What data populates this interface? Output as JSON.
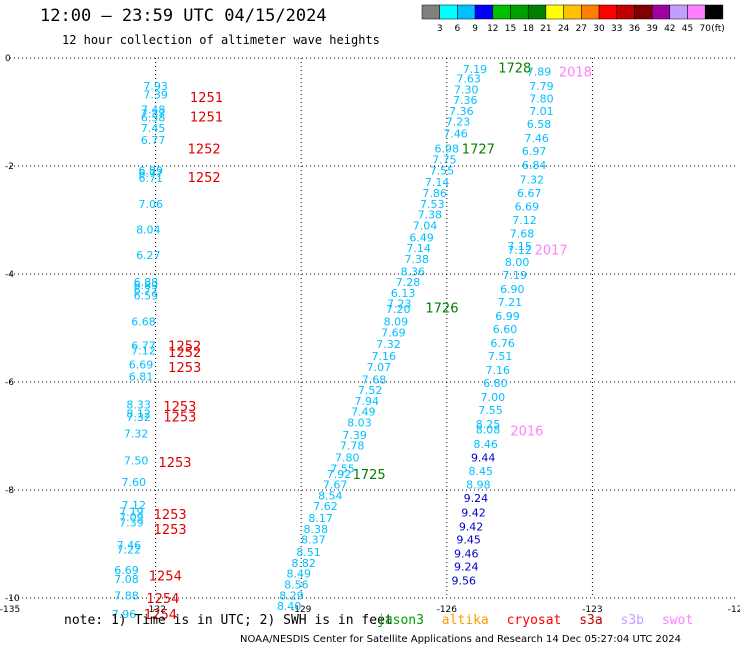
{
  "title": "12:00 – 23:59 UTC 04/15/2024",
  "subtitle": "12 hour collection of altimeter wave heights",
  "note": "note: 1) Time is in UTC; 2) SWH is in feet",
  "credit": "NOAA/NESDIS Center for Satellite Applications and Research   14 Dec 05:27:04 UTC 2024",
  "colorbar": {
    "unit": "(ft)",
    "labels": [
      "3",
      "6",
      "9",
      "12",
      "15",
      "18",
      "21",
      "24",
      "27",
      "30",
      "33",
      "36",
      "39",
      "42",
      "45",
      "70"
    ],
    "colors": [
      "#808080",
      "#00ffff",
      "#00c0ff",
      "#0000ff",
      "#00c000",
      "#00a000",
      "#008000",
      "#ffff00",
      "#ffc000",
      "#ff8000",
      "#ff0000",
      "#c00000",
      "#800000",
      "#a000a0",
      "#c0a0ff",
      "#ff80ff",
      "#000000"
    ]
  },
  "legend": [
    {
      "name": "jason3",
      "color": "#00a000"
    },
    {
      "name": "altika",
      "color": "#ff9900"
    },
    {
      "name": "cryosat",
      "color": "#ff0000"
    },
    {
      "name": "s3a",
      "color": "#c00000"
    },
    {
      "name": "s3b",
      "color": "#c0a0ff"
    },
    {
      "name": "swot",
      "color": "#ff80ff"
    }
  ],
  "chart_data": {
    "type": "scatter",
    "xlabel": "",
    "ylabel": "",
    "xlim": [
      -135,
      -120
    ],
    "ylim": [
      -10,
      0
    ],
    "x_ticks": [
      "-135",
      "-132",
      "-129",
      "-126",
      "-123",
      "-120"
    ],
    "y_ticks": [
      "0",
      "-2",
      "-4",
      "-6",
      "-8",
      "-10"
    ],
    "grid": true,
    "series": [
      {
        "satellite": "cryosat",
        "text_color": "#00bfff",
        "label_color": "#e00000",
        "points": [
          {
            "x": -132.0,
            "y": -0.52,
            "v": "7.93"
          },
          {
            "x": -132.0,
            "y": -0.68,
            "v": "7.39"
          },
          {
            "x": -132.05,
            "y": -0.95,
            "v": "7.48"
          },
          {
            "x": -132.05,
            "y": -1.03,
            "v": "7.37"
          },
          {
            "x": -132.05,
            "y": -1.1,
            "v": "6.58"
          },
          {
            "x": -132.05,
            "y": -1.3,
            "v": "7.45"
          },
          {
            "x": -132.05,
            "y": -1.52,
            "v": "6.77"
          },
          {
            "x": -132.1,
            "y": -2.08,
            "v": "6.89"
          },
          {
            "x": -132.1,
            "y": -2.13,
            "v": "6.77"
          },
          {
            "x": -132.1,
            "y": -2.22,
            "v": "6.71"
          },
          {
            "x": -132.1,
            "y": -2.7,
            "v": "7.06"
          },
          {
            "x": -132.15,
            "y": -3.18,
            "v": "8.04"
          },
          {
            "x": -132.15,
            "y": -3.65,
            "v": "6.27"
          },
          {
            "x": -132.2,
            "y": -4.15,
            "v": "6.88"
          },
          {
            "x": -132.2,
            "y": -4.2,
            "v": "6.89"
          },
          {
            "x": -132.2,
            "y": -4.3,
            "v": "6.77"
          },
          {
            "x": -132.2,
            "y": -4.4,
            "v": "6.59"
          },
          {
            "x": -132.25,
            "y": -4.88,
            "v": "6.68"
          },
          {
            "x": -132.25,
            "y": -5.32,
            "v": "6.77"
          },
          {
            "x": -132.25,
            "y": -5.42,
            "v": "7.12"
          },
          {
            "x": -132.3,
            "y": -5.68,
            "v": "6.69"
          },
          {
            "x": -132.3,
            "y": -5.9,
            "v": "6.81"
          },
          {
            "x": -132.35,
            "y": -6.42,
            "v": "8.33"
          },
          {
            "x": -132.35,
            "y": -6.58,
            "v": "8.12"
          },
          {
            "x": -132.35,
            "y": -6.65,
            "v": "7.32"
          },
          {
            "x": -132.4,
            "y": -6.95,
            "v": "7.32"
          },
          {
            "x": -132.4,
            "y": -7.45,
            "v": "7.50"
          },
          {
            "x": -132.45,
            "y": -7.85,
            "v": "7.60"
          },
          {
            "x": -132.45,
            "y": -8.28,
            "v": "7.12"
          },
          {
            "x": -132.5,
            "y": -8.4,
            "v": "7.19"
          },
          {
            "x": -132.5,
            "y": -8.5,
            "v": "7.09"
          },
          {
            "x": -132.5,
            "y": -8.6,
            "v": "7.39"
          },
          {
            "x": -132.55,
            "y": -9.02,
            "v": "7.46"
          },
          {
            "x": -132.55,
            "y": -9.1,
            "v": "7.22"
          },
          {
            "x": -132.6,
            "y": -9.48,
            "v": "6.69"
          },
          {
            "x": -132.6,
            "y": -9.65,
            "v": "7.08"
          },
          {
            "x": -132.6,
            "y": -9.95,
            "v": "7.88"
          },
          {
            "x": -132.65,
            "y": -10.3,
            "v": "7.96"
          }
        ],
        "labels": [
          {
            "x": -130.95,
            "y": -0.72,
            "t": "1251"
          },
          {
            "x": -130.95,
            "y": -1.08,
            "t": "1251"
          },
          {
            "x": -131.0,
            "y": -1.68,
            "t": "1252"
          },
          {
            "x": -131.0,
            "y": -2.2,
            "t": "1252"
          },
          {
            "x": -131.4,
            "y": -5.32,
            "t": "1252"
          },
          {
            "x": -131.4,
            "y": -5.44,
            "t": "1252"
          },
          {
            "x": -131.4,
            "y": -5.72,
            "t": "1253"
          },
          {
            "x": -131.5,
            "y": -6.44,
            "t": "1253"
          },
          {
            "x": -131.5,
            "y": -6.64,
            "t": "1253"
          },
          {
            "x": -131.6,
            "y": -7.48,
            "t": "1253"
          },
          {
            "x": -131.7,
            "y": -8.44,
            "t": "1253"
          },
          {
            "x": -131.7,
            "y": -8.72,
            "t": "1253"
          },
          {
            "x": -131.8,
            "y": -9.58,
            "t": "1254"
          },
          {
            "x": -131.85,
            "y": -10.0,
            "t": "1254"
          },
          {
            "x": -131.9,
            "y": -10.3,
            "t": "1254"
          }
        ]
      },
      {
        "satellite": "jason3",
        "text_color": "#00bfff",
        "label_color": "#008000",
        "points": [
          {
            "x": -125.42,
            "y": -0.2,
            "v": "7.19"
          },
          {
            "x": -125.55,
            "y": -0.38,
            "v": "7.63"
          },
          {
            "x": -125.6,
            "y": -0.58,
            "v": "7.30"
          },
          {
            "x": -125.62,
            "y": -0.78,
            "v": "7.36"
          },
          {
            "x": -125.7,
            "y": -0.98,
            "v": "7.36"
          },
          {
            "x": -125.77,
            "y": -1.18,
            "v": "7.23"
          },
          {
            "x": -125.82,
            "y": -1.4,
            "v": "7.46"
          },
          {
            "x": -126.0,
            "y": -1.68,
            "v": "6.98"
          },
          {
            "x": -126.05,
            "y": -1.88,
            "v": "7.75"
          },
          {
            "x": -126.1,
            "y": -2.08,
            "v": "7.55"
          },
          {
            "x": -126.2,
            "y": -2.3,
            "v": "7.14"
          },
          {
            "x": -126.25,
            "y": -2.5,
            "v": "7.86"
          },
          {
            "x": -126.3,
            "y": -2.7,
            "v": "7.53"
          },
          {
            "x": -126.35,
            "y": -2.9,
            "v": "7.38"
          },
          {
            "x": -126.45,
            "y": -3.1,
            "v": "7.04"
          },
          {
            "x": -126.52,
            "y": -3.32,
            "v": "6.49"
          },
          {
            "x": -126.58,
            "y": -3.52,
            "v": "7.14"
          },
          {
            "x": -126.62,
            "y": -3.72,
            "v": "7.38"
          },
          {
            "x": -126.7,
            "y": -3.95,
            "v": "8.36"
          },
          {
            "x": -126.8,
            "y": -4.15,
            "v": "7.28"
          },
          {
            "x": -126.9,
            "y": -4.35,
            "v": "6.13"
          },
          {
            "x": -126.98,
            "y": -4.55,
            "v": "7.23"
          },
          {
            "x": -127.0,
            "y": -4.65,
            "v": "7.20"
          },
          {
            "x": -127.05,
            "y": -4.88,
            "v": "8.09"
          },
          {
            "x": -127.1,
            "y": -5.08,
            "v": "7.69"
          },
          {
            "x": -127.2,
            "y": -5.3,
            "v": "7.32"
          },
          {
            "x": -127.3,
            "y": -5.52,
            "v": "7.16"
          },
          {
            "x": -127.4,
            "y": -5.72,
            "v": "7.07"
          },
          {
            "x": -127.5,
            "y": -5.95,
            "v": "7.68"
          },
          {
            "x": -127.58,
            "y": -6.15,
            "v": "7.52"
          },
          {
            "x": -127.65,
            "y": -6.35,
            "v": "7.94"
          },
          {
            "x": -127.72,
            "y": -6.55,
            "v": "7.49"
          },
          {
            "x": -127.8,
            "y": -6.75,
            "v": "8.03"
          },
          {
            "x": -127.9,
            "y": -6.98,
            "v": "7.39"
          },
          {
            "x": -127.95,
            "y": -7.18,
            "v": "7.78"
          },
          {
            "x": -128.05,
            "y": -7.4,
            "v": "7.80"
          },
          {
            "x": -128.15,
            "y": -7.6,
            "v": "7.55"
          },
          {
            "x": -128.22,
            "y": -7.7,
            "v": "7.92"
          },
          {
            "x": -128.3,
            "y": -7.9,
            "v": "7.67"
          },
          {
            "x": -128.4,
            "y": -8.1,
            "v": "8.54"
          },
          {
            "x": -128.5,
            "y": -8.3,
            "v": "7.62"
          },
          {
            "x": -128.6,
            "y": -8.52,
            "v": "8.17"
          },
          {
            "x": -128.7,
            "y": -8.72,
            "v": "8.38"
          },
          {
            "x": -128.75,
            "y": -8.92,
            "v": "8.37"
          },
          {
            "x": -128.85,
            "y": -9.15,
            "v": "8.51"
          },
          {
            "x": -128.95,
            "y": -9.35,
            "v": "8.82"
          },
          {
            "x": -129.05,
            "y": -9.55,
            "v": "8.49"
          },
          {
            "x": -129.1,
            "y": -9.75,
            "v": "8.56"
          },
          {
            "x": -129.2,
            "y": -9.95,
            "v": "8.29"
          },
          {
            "x": -129.25,
            "y": -10.15,
            "v": "8.40"
          }
        ],
        "labels": [
          {
            "x": -124.6,
            "y": -0.18,
            "t": "1728"
          },
          {
            "x": -125.35,
            "y": -1.68,
            "t": "1727"
          },
          {
            "x": -126.1,
            "y": -4.62,
            "t": "1726"
          },
          {
            "x": -127.6,
            "y": -7.7,
            "t": "1725"
          }
        ]
      },
      {
        "satellite": "s3a",
        "text_color": "#00bfff",
        "label_color": "#ff80ff",
        "points": [
          {
            "x": -124.1,
            "y": -0.25,
            "v": "7.89"
          },
          {
            "x": -124.05,
            "y": -0.52,
            "v": "7.79"
          },
          {
            "x": -124.05,
            "y": -0.75,
            "v": "7.80"
          },
          {
            "x": -124.05,
            "y": -0.98,
            "v": "7.01"
          },
          {
            "x": -124.1,
            "y": -1.22,
            "v": "6.58"
          },
          {
            "x": -124.15,
            "y": -1.48,
            "v": "7.46"
          },
          {
            "x": -124.2,
            "y": -1.72,
            "v": "6.97"
          },
          {
            "x": -124.2,
            "y": -1.98,
            "v": "6.84"
          },
          {
            "x": -124.25,
            "y": -2.25,
            "v": "7.32"
          },
          {
            "x": -124.3,
            "y": -2.5,
            "v": "6.67"
          },
          {
            "x": -124.35,
            "y": -2.75,
            "v": "6.69"
          },
          {
            "x": -124.4,
            "y": -3.0,
            "v": "7.12"
          },
          {
            "x": -124.45,
            "y": -3.25,
            "v": "7.68"
          },
          {
            "x": -124.5,
            "y": -3.48,
            "v": "7.15"
          },
          {
            "x": -124.5,
            "y": -3.56,
            "v": "7.12"
          },
          {
            "x": -124.55,
            "y": -3.78,
            "v": "8.00"
          },
          {
            "x": -124.6,
            "y": -4.02,
            "v": "7.19"
          },
          {
            "x": -124.65,
            "y": -4.28,
            "v": "6.90"
          },
          {
            "x": -124.7,
            "y": -4.52,
            "v": "7.21"
          },
          {
            "x": -124.75,
            "y": -4.78,
            "v": "6.99"
          },
          {
            "x": -124.8,
            "y": -5.02,
            "v": "6.60"
          },
          {
            "x": -124.85,
            "y": -5.28,
            "v": "6.76"
          },
          {
            "x": -124.9,
            "y": -5.52,
            "v": "7.51"
          },
          {
            "x": -124.95,
            "y": -5.78,
            "v": "7.16"
          },
          {
            "x": -125.0,
            "y": -6.02,
            "v": "6.80"
          },
          {
            "x": -125.05,
            "y": -6.28,
            "v": "7.00"
          },
          {
            "x": -125.1,
            "y": -6.52,
            "v": "7.55"
          },
          {
            "x": -125.15,
            "y": -6.78,
            "v": "8.25"
          },
          {
            "x": -125.15,
            "y": -6.88,
            "v": "8.08"
          },
          {
            "x": -125.2,
            "y": -7.15,
            "v": "8.46"
          },
          {
            "x": -125.25,
            "y": -7.4,
            "v": "9.44"
          },
          {
            "x": -125.3,
            "y": -7.65,
            "v": "8.45"
          },
          {
            "x": -125.35,
            "y": -7.9,
            "v": "8.98"
          },
          {
            "x": -125.4,
            "y": -8.15,
            "v": "9.24"
          },
          {
            "x": -125.45,
            "y": -8.42,
            "v": "9.42"
          },
          {
            "x": -125.5,
            "y": -8.68,
            "v": "9.42"
          },
          {
            "x": -125.55,
            "y": -8.92,
            "v": "9.45"
          },
          {
            "x": -125.6,
            "y": -9.18,
            "v": "9.46"
          },
          {
            "x": -125.6,
            "y": -9.42,
            "v": "9.24"
          },
          {
            "x": -125.65,
            "y": -9.68,
            "v": "9.56"
          }
        ],
        "labels": [
          {
            "x": -123.35,
            "y": -0.25,
            "t": "2018"
          },
          {
            "x": -123.85,
            "y": -3.55,
            "t": "2017"
          },
          {
            "x": -124.35,
            "y": -6.9,
            "t": "2016"
          }
        ]
      }
    ]
  }
}
